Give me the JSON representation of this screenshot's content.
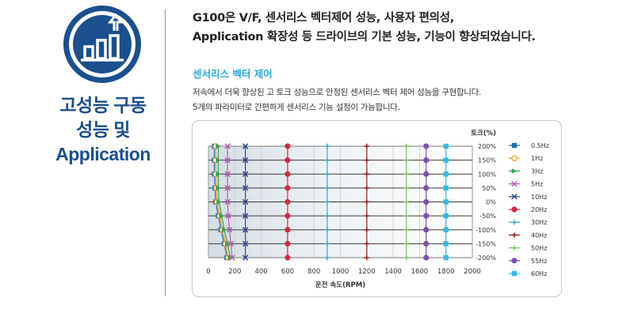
{
  "left": {
    "title_lines": [
      "고성능 구동",
      "성능 및",
      "Application"
    ],
    "icon": "bar-chart-growth-icon",
    "accent_color": "#1b4f8e"
  },
  "headline": {
    "lines": [
      "G100은 V/F, 센서리스 벡터제어 성능, 사용자 편의성,",
      "Application 확장성 등 드라이브의 기본 성능, 기능이 향상되었습니다."
    ]
  },
  "section": {
    "title": "센서리스 벡터 제어",
    "title_color": "#2aa9d8",
    "description_lines": [
      "저속에서 더욱 향상된 고 토크 성능으로 안정된 센서리스 벡터 제어 성능을 구현합니다.",
      "5개의 파라미터로 간편하게 센서리스 기능 설정이 가능합니다."
    ]
  },
  "chart_data": {
    "type": "line",
    "xlabel": "운전 속도(RPM)",
    "ylabel": "토크(%)",
    "x_ticks": [
      0,
      200,
      400,
      600,
      800,
      1000,
      1200,
      1400,
      1600,
      1800,
      2000
    ],
    "y_ticks": [
      200,
      150,
      100,
      50,
      0,
      -50,
      -100,
      -150,
      -200
    ],
    "y_tick_labels": [
      "200%",
      "150%",
      "100%",
      "50%",
      "0%",
      "-50%",
      "-100%",
      "-150%",
      "-200%"
    ],
    "xlim": [
      0,
      2000
    ],
    "ylim": [
      -200,
      200
    ],
    "grid": true,
    "legend_position": "right",
    "torque_points": [
      200,
      150,
      100,
      50,
      0,
      -50,
      -100,
      -150,
      -200
    ],
    "series": [
      {
        "name": "0.5Hz",
        "color": "#1f6fb5",
        "marker": "square",
        "speeds": [
          45,
          45,
          45,
          50,
          55,
          75,
          95,
          120,
          140
        ]
      },
      {
        "name": "1Hz",
        "color": "#f39c2a",
        "marker": "circle-open",
        "speeds": [
          55,
          55,
          55,
          60,
          65,
          85,
          105,
          130,
          150
        ]
      },
      {
        "name": "3Hz",
        "color": "#2ea44f",
        "marker": "triangle",
        "speeds": [
          75,
          75,
          75,
          75,
          80,
          100,
          120,
          145,
          165
        ]
      },
      {
        "name": "5Hz",
        "color": "#b05db5",
        "marker": "x",
        "speeds": [
          145,
          145,
          145,
          145,
          145,
          150,
          160,
          170,
          180
        ]
      },
      {
        "name": "10Hz",
        "color": "#2c4a8c",
        "marker": "x",
        "speeds": [
          280,
          280,
          280,
          280,
          280,
          280,
          280,
          280,
          280
        ]
      },
      {
        "name": "20Hz",
        "color": "#d7263d",
        "marker": "circle",
        "speeds": [
          600,
          600,
          600,
          600,
          600,
          600,
          600,
          600,
          600
        ]
      },
      {
        "name": "30Hz",
        "color": "#3aa7d6",
        "marker": "plus",
        "speeds": [
          900,
          900,
          900,
          900,
          900,
          900,
          900,
          900,
          900
        ]
      },
      {
        "name": "40Hz",
        "color": "#9c1a1a",
        "marker": "plus",
        "speeds": [
          1200,
          1200,
          1200,
          1200,
          1200,
          1200,
          1200,
          1200,
          1200
        ]
      },
      {
        "name": "50Hz",
        "color": "#7dc36b",
        "marker": "plus",
        "speeds": [
          1500,
          1500,
          1500,
          1500,
          1500,
          1500,
          1500,
          1500,
          1500
        ]
      },
      {
        "name": "55Hz",
        "color": "#7d4fb0",
        "marker": "circle",
        "speeds": [
          1650,
          1650,
          1650,
          1650,
          1650,
          1650,
          1650,
          1650,
          1650
        ]
      },
      {
        "name": "60Hz",
        "color": "#2fbde8",
        "marker": "square",
        "speeds": [
          1800,
          1800,
          1800,
          1800,
          1800,
          1800,
          1800,
          1800,
          1800
        ]
      }
    ]
  }
}
